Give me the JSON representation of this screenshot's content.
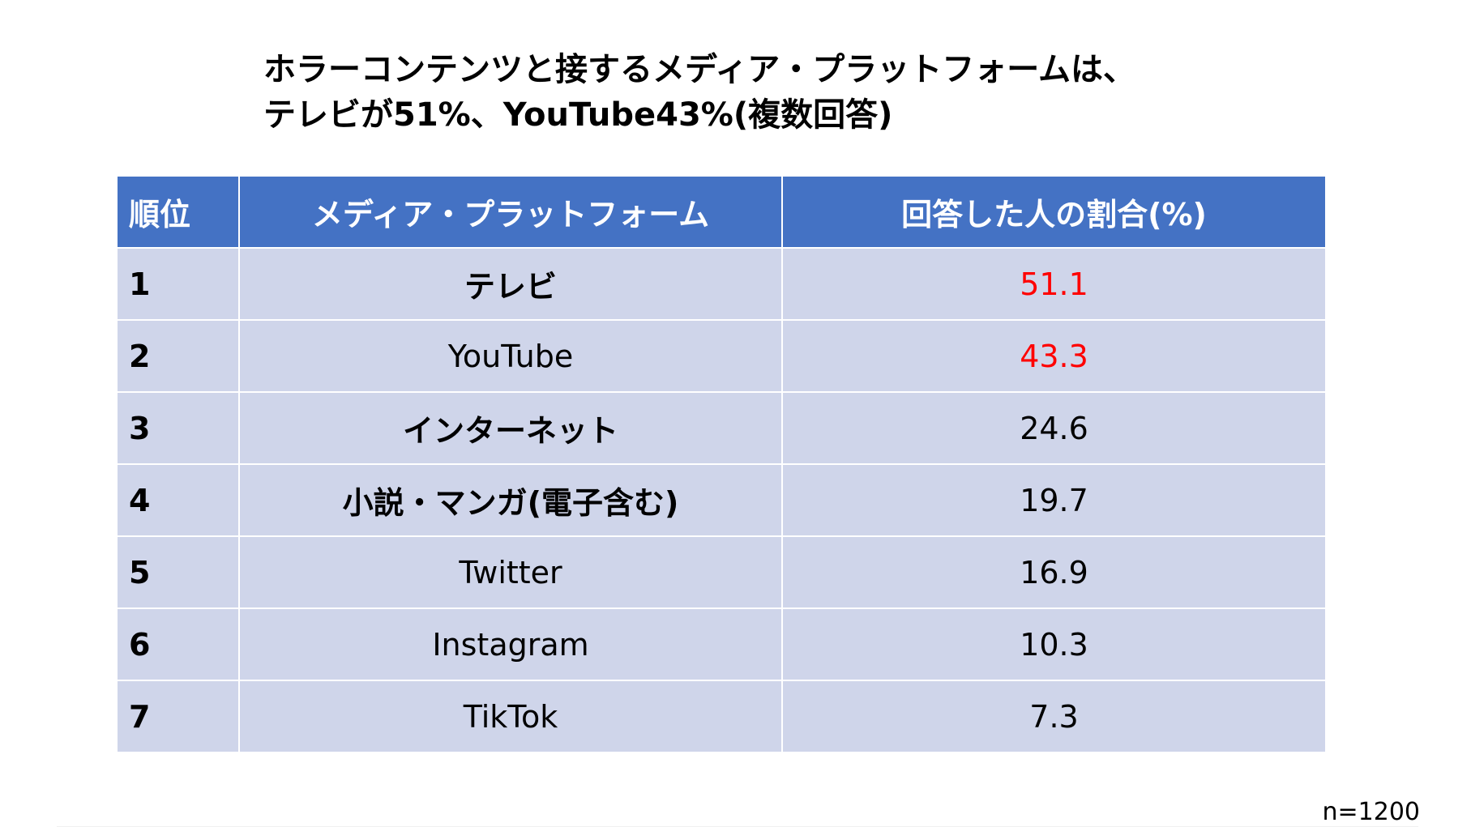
{
  "chart_data": {
    "type": "table",
    "title_lines": [
      "ホラーコンテンツと接するメディア・プラットフォームは、",
      "テレビが51%、YouTube43%(複数回答)"
    ],
    "columns": [
      "順位",
      "メディア・プラットフォーム",
      "回答した人の割合(%)"
    ],
    "rows": [
      {
        "rank": "1",
        "media": "テレビ",
        "percent": "51.1",
        "highlight": true
      },
      {
        "rank": "2",
        "media": "YouTube",
        "percent": "43.3",
        "highlight": true
      },
      {
        "rank": "3",
        "media": "インターネット",
        "percent": "24.6",
        "highlight": false
      },
      {
        "rank": "4",
        "media": "小説・マンガ(電子含む)",
        "percent": "19.7",
        "highlight": false
      },
      {
        "rank": "5",
        "media": "Twitter",
        "percent": "16.9",
        "highlight": false
      },
      {
        "rank": "6",
        "media": "Instagram",
        "percent": "10.3",
        "highlight": false
      },
      {
        "rank": "7",
        "media": "TikTok",
        "percent": "7.3",
        "highlight": false
      }
    ],
    "note": "n=1200",
    "colors": {
      "header_bg": "#4472c4",
      "row_bg": "#cfd5ea",
      "highlight_text": "#ff0000"
    }
  }
}
